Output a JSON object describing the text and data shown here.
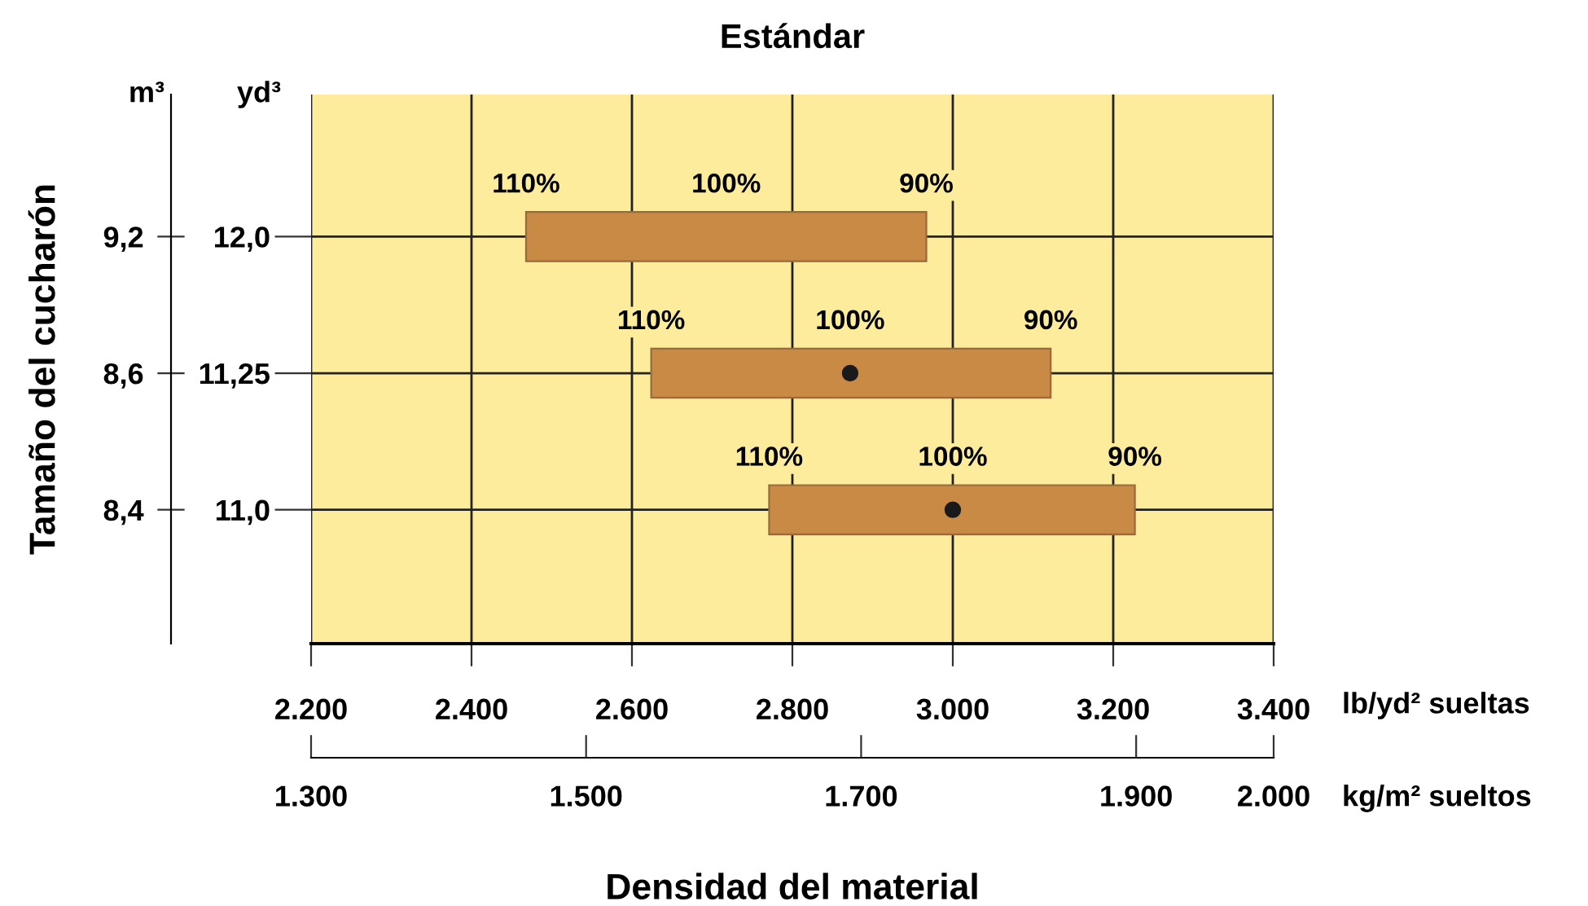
{
  "chart_data": {
    "type": "bar",
    "orientation": "horizontal",
    "title": "Estándar",
    "ylabel": "Tamaño del cucharón",
    "xlabel": "Densidad del material",
    "categories": [
      "12,0",
      "11,25",
      "11,0"
    ],
    "y2_categories": [
      "9,2",
      "8,6",
      "8,4"
    ],
    "series": [
      {
        "color": "#c98a45",
        "base": [
          2468,
          2624,
          2771
        ],
        "values": [
          499,
          498,
          456
        ]
      },
      {
        "type": "scatter",
        "color": "#1a1a1a",
        "values": [
          null,
          2872,
          3000
        ]
      }
    ],
    "xlim": [
      2200,
      3400
    ],
    "xticks": [
      {
        "value": 2200,
        "label": "2.200"
      },
      {
        "value": 2400,
        "label": "2.400"
      },
      {
        "value": 2600,
        "label": "2.600"
      },
      {
        "value": 2800,
        "label": "2.800"
      },
      {
        "value": 3000,
        "label": "3.000"
      },
      {
        "value": 3200,
        "label": "3.200"
      },
      {
        "value": 3400,
        "label": "3.400"
      }
    ],
    "x2lim": [
      1300,
      2000
    ],
    "x2ticks": [
      {
        "value": 1300,
        "label": "1.300"
      },
      {
        "value": 1500,
        "label": "1.500"
      },
      {
        "value": 1700,
        "label": "1.700"
      },
      {
        "value": 1900,
        "label": "1.900"
      },
      {
        "value": 2000,
        "label": "2.000"
      }
    ],
    "x2label": "kg/m² sueltos",
    "grid": true,
    "marker": "circle",
    "annotations": [
      "m³",
      "yd³",
      "lb/yd² sueltas",
      "110%",
      "100%",
      "90%",
      "110%",
      "100%",
      "90%",
      "110%",
      "100%",
      "90%"
    ]
  }
}
